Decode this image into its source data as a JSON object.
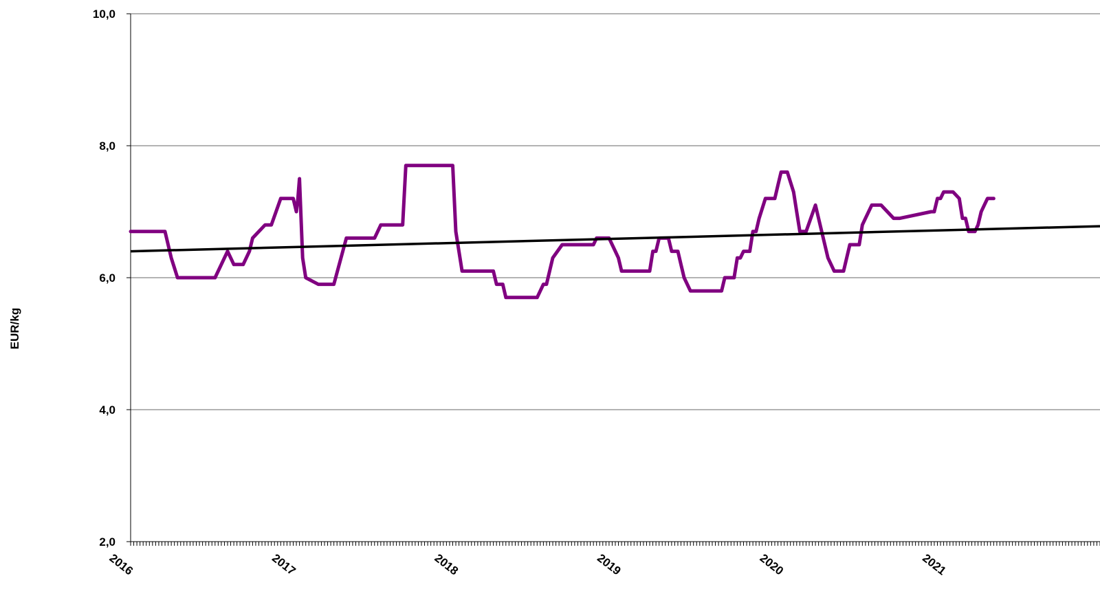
{
  "chart_data": {
    "type": "line",
    "title": "",
    "xlabel": "",
    "ylabel": "EUR/kg",
    "ylim": [
      2.0,
      10.0
    ],
    "y_ticks": [
      "2,0",
      "4,0",
      "6,0",
      "8,0",
      "10,0"
    ],
    "y_tick_values": [
      2.0,
      4.0,
      6.0,
      8.0,
      10.0
    ],
    "x_ticks": [
      "2016",
      "2017",
      "2018",
      "2019",
      "2020",
      "2021"
    ],
    "x_tick_values": [
      0,
      52,
      104,
      156,
      208,
      260
    ],
    "x_unit": "weeks",
    "xlim": [
      0,
      310
    ],
    "grid": true,
    "legend": "none",
    "colors": {
      "series": "#800080",
      "trend": "#000000",
      "grid": "#b3b3b3"
    },
    "series": [
      {
        "x": [
          0,
          5,
          11,
          13,
          15,
          18,
          25,
          27,
          29,
          31,
          33,
          36,
          38,
          39,
          43,
          45,
          48,
          51,
          52,
          53,
          53.5,
          54,
          55,
          56,
          60,
          63,
          65,
          69,
          71,
          72,
          74,
          78,
          80,
          83,
          87,
          88,
          94,
          96,
          99,
          103,
          104,
          106,
          108,
          112,
          116,
          117,
          119,
          120,
          130,
          132,
          133,
          135,
          138,
          141,
          148,
          149,
          153,
          155,
          156,
          157,
          159,
          162,
          166,
          167,
          168,
          169,
          170,
          172,
          173,
          175,
          176,
          177,
          179,
          183,
          189,
          190,
          193,
          194,
          195,
          196,
          197,
          198,
          199,
          200,
          201,
          203,
          206,
          207,
          208,
          210,
          212,
          213,
          214,
          215,
          216,
          219,
          223,
          225,
          226,
          227,
          228,
          230,
          233,
          234,
          237,
          240,
          244,
          245,
          246,
          256,
          257,
          258,
          259,
          260,
          262,
          263,
          265,
          266,
          267,
          268,
          269,
          270,
          271,
          272,
          273,
          274,
          276
        ],
        "values": [
          6.7,
          6.7,
          6.7,
          6.3,
          6.0,
          6.0,
          6.0,
          6.0,
          6.2,
          6.4,
          6.2,
          6.2,
          6.4,
          6.6,
          6.8,
          6.8,
          7.2,
          7.2,
          7.2,
          7.0,
          7.2,
          7.5,
          6.3,
          6.0,
          5.9,
          5.9,
          5.9,
          6.6,
          6.6,
          6.6,
          6.6,
          6.6,
          6.8,
          6.8,
          6.8,
          7.7,
          7.7,
          7.7,
          7.7,
          7.7,
          6.7,
          6.1,
          6.1,
          6.1,
          6.1,
          5.9,
          5.9,
          5.7,
          5.7,
          5.9,
          5.9,
          6.3,
          6.5,
          6.5,
          6.5,
          6.6,
          6.6,
          6.4,
          6.3,
          6.1,
          6.1,
          6.1,
          6.1,
          6.4,
          6.4,
          6.6,
          6.6,
          6.6,
          6.4,
          6.4,
          6.2,
          6.0,
          5.8,
          5.8,
          5.8,
          6.0,
          6.0,
          6.3,
          6.3,
          6.4,
          6.4,
          6.4,
          6.7,
          6.7,
          6.9,
          7.2,
          7.2,
          7.4,
          7.6,
          7.6,
          7.3,
          7.0,
          6.7,
          6.7,
          6.7,
          7.1,
          6.3,
          6.1,
          6.1,
          6.1,
          6.1,
          6.5,
          6.5,
          6.8,
          7.1,
          7.1,
          6.9,
          6.9,
          6.9,
          7.0,
          7.0,
          7.2,
          7.2,
          7.3,
          7.3,
          7.3,
          7.2,
          6.9,
          6.9,
          6.7,
          6.7,
          6.7,
          6.8,
          7.0,
          7.1,
          7.2,
          7.2
        ]
      }
    ],
    "trendline": {
      "x": [
        0,
        310
      ],
      "values": [
        6.4,
        6.78
      ]
    }
  }
}
